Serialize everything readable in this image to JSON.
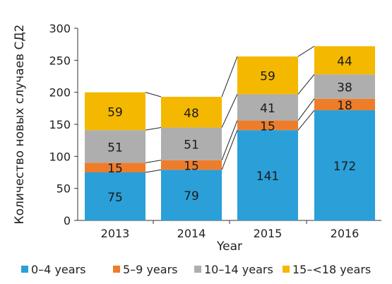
{
  "chart_data": {
    "type": "bar",
    "stacked": true,
    "title": "",
    "xlabel": "Year",
    "ylabel": "Количество новых случаев СД2",
    "ylim": [
      0,
      300
    ],
    "yticks": [
      0,
      50,
      100,
      150,
      200,
      250,
      300
    ],
    "categories": [
      "2013",
      "2014",
      "2015",
      "2016"
    ],
    "series": [
      {
        "name": "0–4 years",
        "color": "#2a9fd8",
        "values": [
          75,
          79,
          141,
          172
        ]
      },
      {
        "name": "5–9 years",
        "color": "#ee7d2b",
        "values": [
          15,
          15,
          15,
          18
        ]
      },
      {
        "name": "10–14 years",
        "color": "#aeaeae",
        "values": [
          51,
          51,
          41,
          38
        ]
      },
      {
        "name": "15–<18 years",
        "color": "#f4b800",
        "values": [
          59,
          48,
          59,
          44
        ]
      }
    ],
    "legend_position": "bottom",
    "grid": false,
    "connector_lines": true
  }
}
